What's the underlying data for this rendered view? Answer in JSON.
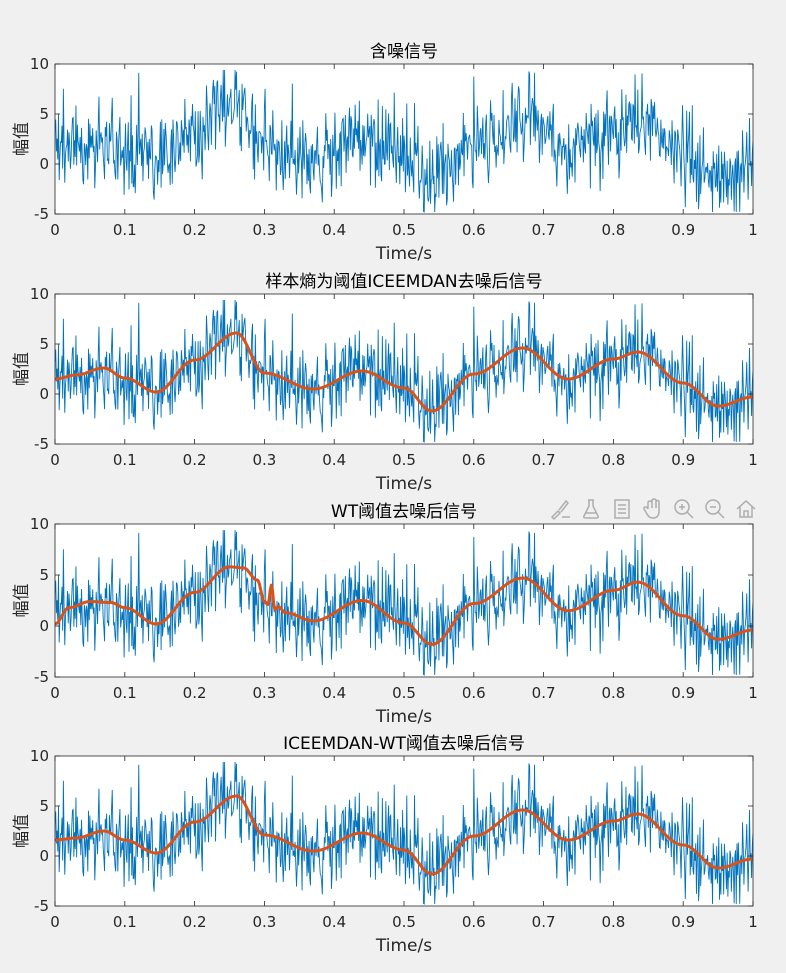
{
  "figure": {
    "background": "#f0f0f0"
  },
  "toolbar": {
    "icons": [
      "brush-icon",
      "data-tips-icon",
      "legend-icon",
      "pan-hand-icon",
      "zoom-in-icon",
      "zoom-out-icon",
      "home-icon"
    ]
  },
  "chart_data": [
    {
      "type": "line",
      "title": "含噪信号",
      "xlabel": "Time/s",
      "ylabel": "幅值",
      "xlim": [
        0,
        1
      ],
      "ylim": [
        -5,
        10
      ],
      "xticks": [
        "0",
        "0.1",
        "0.2",
        "0.3",
        "0.4",
        "0.5",
        "0.6",
        "0.7",
        "0.8",
        "0.9",
        "1"
      ],
      "yticks": [
        "-5",
        "0",
        "5",
        "10"
      ],
      "grid": false,
      "series": [
        {
          "role": "noisy",
          "color": "#0072bd",
          "x": [
            0,
            0.03,
            0.07,
            0.1,
            0.145,
            0.2,
            0.26,
            0.3,
            0.37,
            0.44,
            0.5,
            0.54,
            0.6,
            0.67,
            0.735,
            0.8,
            0.835,
            0.9,
            0.95,
            1
          ],
          "y": [
            1.5,
            2.0,
            2.5,
            1.5,
            0.2,
            3.5,
            6.0,
            2.0,
            0.5,
            2.3,
            0.5,
            -1.7,
            2.0,
            4.6,
            1.5,
            3.5,
            4.2,
            1.0,
            -1.2,
            -0.3
          ]
        }
      ]
    },
    {
      "type": "line",
      "title": "样本熵为阈值ICEEMDAN去噪后信号",
      "xlabel": "Time/s",
      "ylabel": "幅值",
      "xlim": [
        0,
        1
      ],
      "ylim": [
        -5,
        10
      ],
      "xticks": [
        "0",
        "0.1",
        "0.2",
        "0.3",
        "0.4",
        "0.5",
        "0.6",
        "0.7",
        "0.8",
        "0.9",
        "1"
      ],
      "yticks": [
        "-5",
        "0",
        "5",
        "10"
      ],
      "grid": false,
      "series": [
        {
          "role": "noisy",
          "color": "#0072bd",
          "x": [
            0,
            0.03,
            0.07,
            0.1,
            0.145,
            0.2,
            0.26,
            0.3,
            0.37,
            0.44,
            0.5,
            0.54,
            0.6,
            0.67,
            0.735,
            0.8,
            0.835,
            0.9,
            0.95,
            1
          ],
          "y": [
            1.5,
            2.0,
            2.5,
            1.5,
            0.2,
            3.5,
            6.0,
            2.0,
            0.5,
            2.3,
            0.5,
            -1.7,
            2.0,
            4.6,
            1.5,
            3.5,
            4.2,
            1.0,
            -1.2,
            -0.3
          ]
        },
        {
          "role": "denoised",
          "color": "#d95319",
          "x": [
            0,
            0.03,
            0.07,
            0.1,
            0.145,
            0.2,
            0.26,
            0.3,
            0.37,
            0.44,
            0.5,
            0.54,
            0.6,
            0.67,
            0.735,
            0.8,
            0.835,
            0.9,
            0.95,
            1
          ],
          "y": [
            1.5,
            1.9,
            2.6,
            1.6,
            0.2,
            3.4,
            6.1,
            2.1,
            0.5,
            2.3,
            0.6,
            -1.7,
            2.0,
            4.6,
            1.5,
            3.5,
            4.2,
            1.1,
            -1.2,
            -0.3
          ]
        }
      ]
    },
    {
      "type": "line",
      "title": "WT阈值去噪后信号",
      "xlabel": "Time/s",
      "ylabel": "幅值",
      "xlim": [
        0,
        1
      ],
      "ylim": [
        -5,
        10
      ],
      "xticks": [
        "0",
        "0.1",
        "0.2",
        "0.3",
        "0.4",
        "0.5",
        "0.6",
        "0.7",
        "0.8",
        "0.9",
        "1"
      ],
      "yticks": [
        "-5",
        "0",
        "5",
        "10"
      ],
      "grid": false,
      "series": [
        {
          "role": "noisy",
          "color": "#0072bd",
          "x": [
            0,
            0.03,
            0.07,
            0.1,
            0.145,
            0.2,
            0.26,
            0.3,
            0.37,
            0.44,
            0.5,
            0.54,
            0.6,
            0.67,
            0.735,
            0.8,
            0.835,
            0.9,
            0.95,
            1
          ],
          "y": [
            1.5,
            2.0,
            2.5,
            1.5,
            0.2,
            3.5,
            6.0,
            2.0,
            0.5,
            2.3,
            0.5,
            -1.7,
            2.0,
            4.6,
            1.5,
            3.5,
            4.2,
            1.0,
            -1.2,
            -0.3
          ]
        },
        {
          "role": "denoised",
          "color": "#d95319",
          "x": [
            0,
            0.02,
            0.05,
            0.08,
            0.1,
            0.145,
            0.2,
            0.25,
            0.27,
            0.29,
            0.3,
            0.305,
            0.31,
            0.315,
            0.32,
            0.33,
            0.37,
            0.44,
            0.5,
            0.54,
            0.6,
            0.67,
            0.735,
            0.8,
            0.835,
            0.9,
            0.95,
            1
          ],
          "y": [
            0.2,
            1.8,
            2.4,
            2.3,
            1.8,
            0.2,
            3.3,
            5.8,
            5.7,
            4.5,
            2.4,
            2.1,
            4.0,
            1.6,
            1.9,
            1.3,
            0.5,
            2.5,
            0.3,
            -1.8,
            2.2,
            4.7,
            1.5,
            3.5,
            4.3,
            1.0,
            -1.3,
            -0.4
          ]
        }
      ]
    },
    {
      "type": "line",
      "title": "ICEEMDAN-WT阈值去噪后信号",
      "xlabel": "Time/s",
      "ylabel": "幅值",
      "xlim": [
        0,
        1
      ],
      "ylim": [
        -5,
        10
      ],
      "xticks": [
        "0",
        "0.1",
        "0.2",
        "0.3",
        "0.4",
        "0.5",
        "0.6",
        "0.7",
        "0.8",
        "0.9",
        "1"
      ],
      "yticks": [
        "-5",
        "0",
        "5",
        "10"
      ],
      "grid": false,
      "series": [
        {
          "role": "noisy",
          "color": "#0072bd",
          "x": [
            0,
            0.03,
            0.07,
            0.1,
            0.145,
            0.2,
            0.26,
            0.3,
            0.37,
            0.44,
            0.5,
            0.54,
            0.6,
            0.67,
            0.735,
            0.8,
            0.835,
            0.9,
            0.95,
            1
          ],
          "y": [
            1.5,
            2.0,
            2.5,
            1.5,
            0.2,
            3.5,
            6.0,
            2.0,
            0.5,
            2.3,
            0.5,
            -1.7,
            2.0,
            4.6,
            1.5,
            3.5,
            4.2,
            1.0,
            -1.2,
            -0.3
          ]
        },
        {
          "role": "denoised",
          "color": "#d95319",
          "x": [
            0,
            0.03,
            0.07,
            0.1,
            0.145,
            0.2,
            0.26,
            0.3,
            0.37,
            0.44,
            0.5,
            0.54,
            0.6,
            0.67,
            0.735,
            0.8,
            0.835,
            0.9,
            0.95,
            1
          ],
          "y": [
            1.6,
            1.8,
            2.5,
            1.6,
            0.3,
            3.4,
            6.0,
            2.1,
            0.5,
            2.3,
            0.6,
            -1.8,
            2.0,
            4.6,
            1.6,
            3.5,
            4.2,
            1.1,
            -1.2,
            -0.3
          ]
        }
      ]
    }
  ]
}
